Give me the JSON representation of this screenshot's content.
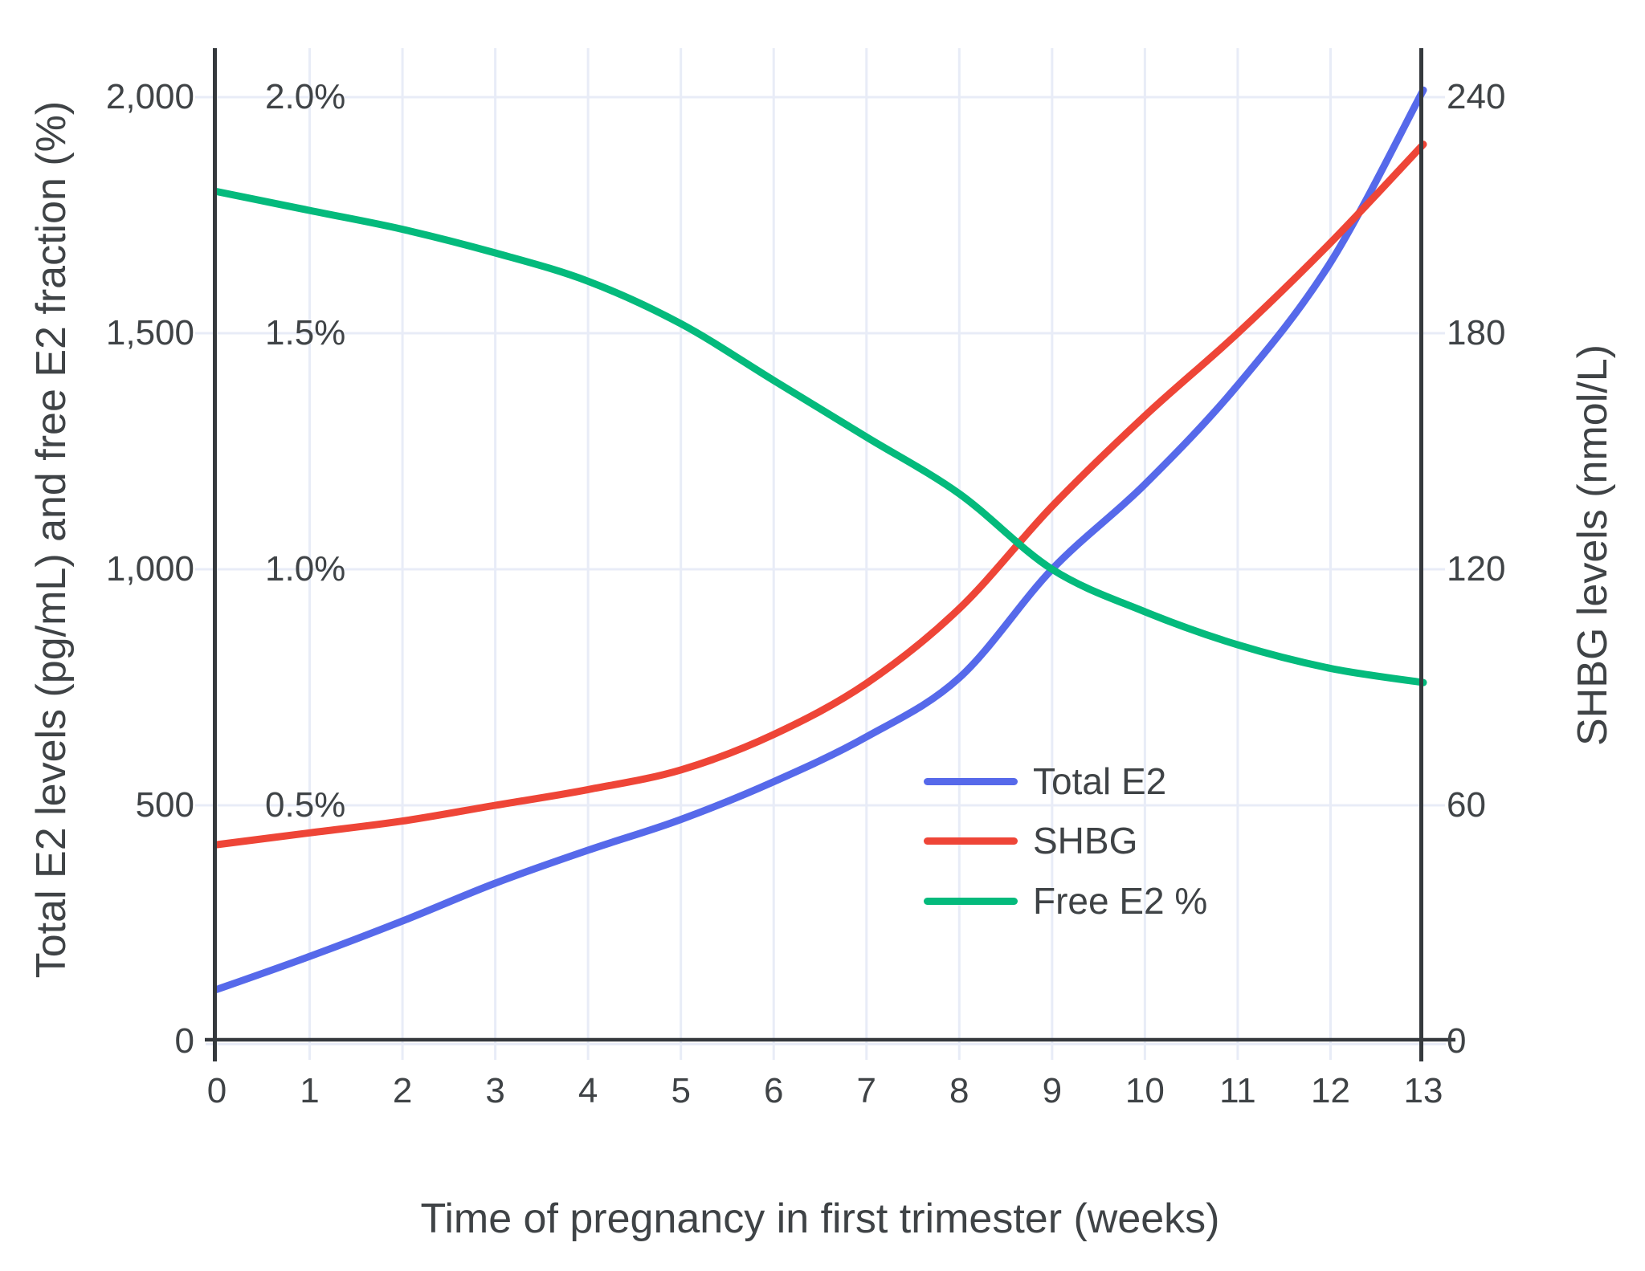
{
  "chart_data": {
    "type": "line",
    "title": "",
    "xlabel": "Time of pregnancy in first trimester (weeks)",
    "ylabel_left": "Total E2 levels (pg/mL) and free E2 fraction (%)",
    "ylabel_right": "SHBG levels (nmol/L)",
    "x": [
      0,
      1,
      2,
      3,
      4,
      5,
      6,
      7,
      8,
      9,
      10,
      11,
      12,
      13
    ],
    "x_tick_labels": [
      "0",
      "1",
      "2",
      "3",
      "4",
      "5",
      "6",
      "7",
      "8",
      "9",
      "10",
      "11",
      "12",
      "13"
    ],
    "xlim": [
      0,
      13
    ],
    "left_axis": {
      "tick_values": [
        0,
        500,
        1000,
        1500,
        2000
      ],
      "tick_labels": [
        "0",
        "500",
        "1,000",
        "1,500",
        "2,000"
      ],
      "range": [
        0,
        2090
      ]
    },
    "right_axis": {
      "tick_values": [
        0,
        60,
        120,
        180,
        240
      ],
      "tick_labels": [
        "0",
        "60",
        "120",
        "180",
        "240"
      ],
      "range": [
        0,
        250.8
      ]
    },
    "percent_annotations": [
      {
        "label": "2.0%",
        "value": 2000
      },
      {
        "label": "1.5%",
        "value": 1500
      },
      {
        "label": "1.0%",
        "value": 1000
      },
      {
        "label": "0.5%",
        "value": 500
      }
    ],
    "grid": true,
    "legend_position": "inside-right-middle",
    "series": [
      {
        "name": "Total E2",
        "axis": "left",
        "unit": "pg/mL",
        "color": "#5669EA",
        "values": [
          110,
          180,
          255,
          335,
          405,
          470,
          550,
          645,
          770,
          1000,
          1180,
          1390,
          1650,
          2015
        ]
      },
      {
        "name": "SHBG",
        "axis": "right",
        "unit": "nmol/L",
        "color": "#EE4537",
        "values": [
          50,
          53,
          56,
          60,
          64,
          69,
          78,
          91,
          110,
          136,
          159,
          180,
          203,
          228
        ]
      },
      {
        "name": "Free E2 %",
        "axis": "left",
        "unit": "%",
        "color": "#04BA7C",
        "values": [
          1.8,
          1.76,
          1.72,
          1.67,
          1.61,
          1.52,
          1.4,
          1.28,
          1.16,
          1.0,
          0.91,
          0.84,
          0.79,
          0.76
        ]
      }
    ],
    "colors": {
      "grid": "#E8ECF7",
      "axis_line": "#35393D",
      "text": "#3F4346",
      "background": "#FFFFFF"
    }
  }
}
